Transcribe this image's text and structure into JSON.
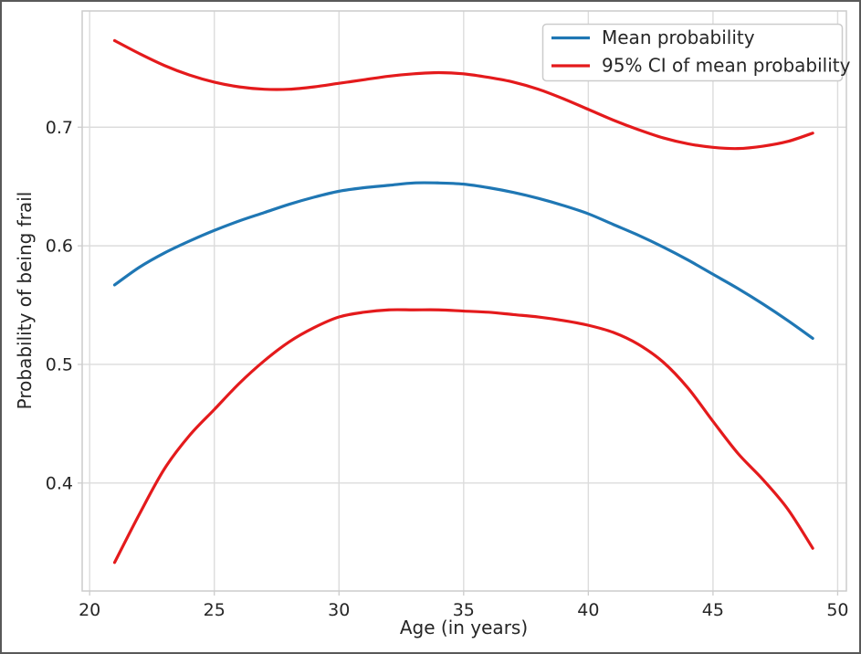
{
  "figure": {
    "background": "#ffffff",
    "border_color": "#595959"
  },
  "chart_data": {
    "type": "line",
    "title": "",
    "xlabel": "Age (in years)",
    "ylabel": "Probability of being frail",
    "xlim": [
      19.7,
      50.35
    ],
    "ylim": [
      0.309,
      0.798
    ],
    "xticks": [
      20,
      25,
      30,
      35,
      40,
      45,
      50
    ],
    "yticks": [
      0.4,
      0.5,
      0.6,
      0.7
    ],
    "grid": true,
    "grid_color": "#dcdcdc",
    "spine_color": "#cccccc",
    "text_color": "#262626",
    "legend_position": "upper right",
    "x": [
      21,
      22,
      23,
      24,
      25,
      26,
      27,
      28,
      29,
      30,
      31,
      32,
      33,
      34,
      35,
      36,
      37,
      38,
      39,
      40,
      41,
      42,
      43,
      44,
      45,
      46,
      47,
      48,
      49
    ],
    "series": [
      {
        "name": "Mean probability",
        "color": "#1f77b4",
        "values": [
          0.567,
          0.582,
          0.594,
          0.604,
          0.613,
          0.621,
          0.628,
          0.635,
          0.641,
          0.646,
          0.649,
          0.651,
          0.653,
          0.653,
          0.652,
          0.649,
          0.645,
          0.64,
          0.634,
          0.627,
          0.618,
          0.609,
          0.599,
          0.588,
          0.576,
          0.564,
          0.551,
          0.537,
          0.522
        ]
      },
      {
        "name": "95% CI of mean probability (upper bound)",
        "color": "#e41a1c",
        "values": [
          0.773,
          0.762,
          0.752,
          0.744,
          0.738,
          0.734,
          0.732,
          0.732,
          0.734,
          0.737,
          0.74,
          0.743,
          0.745,
          0.746,
          0.745,
          0.742,
          0.738,
          0.732,
          0.724,
          0.715,
          0.706,
          0.698,
          0.691,
          0.686,
          0.683,
          0.682,
          0.684,
          0.688,
          0.695
        ]
      },
      {
        "name": "95% CI of mean probability (lower bound)",
        "color": "#e41a1c",
        "values": [
          0.333,
          0.374,
          0.412,
          0.44,
          0.462,
          0.484,
          0.503,
          0.519,
          0.531,
          0.54,
          0.544,
          0.546,
          0.546,
          0.546,
          0.545,
          0.544,
          0.542,
          0.54,
          0.537,
          0.533,
          0.527,
          0.517,
          0.502,
          0.48,
          0.452,
          0.425,
          0.403,
          0.378,
          0.345
        ]
      }
    ],
    "legend": [
      {
        "label": "Mean probability",
        "color": "#1f77b4"
      },
      {
        "label": "95% CI of mean probability",
        "color": "#e41a1c"
      }
    ]
  }
}
